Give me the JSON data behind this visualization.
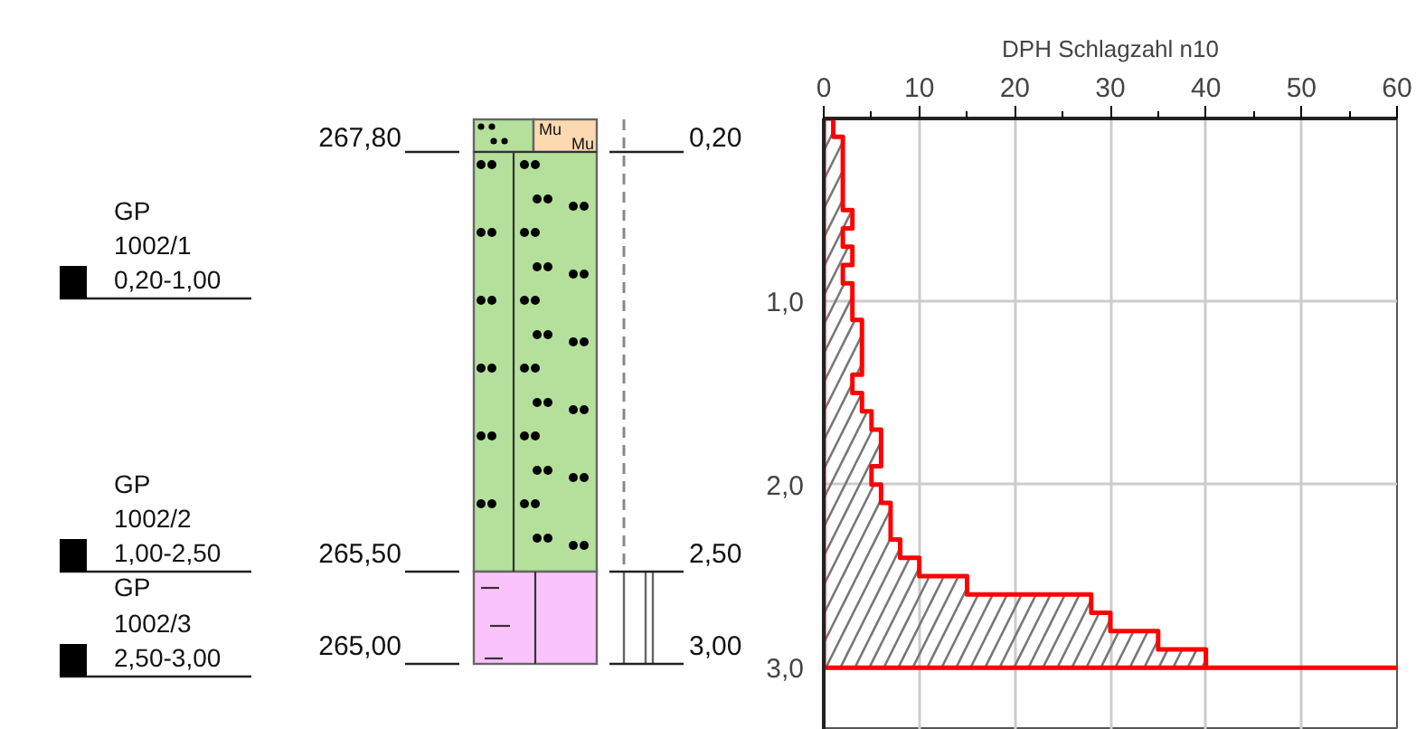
{
  "chart_data": {
    "type": "area",
    "orientation": "horizontal",
    "xlabel": "DPH Schlagzahl n10",
    "x": [
      0,
      0.1,
      0.2,
      0.3,
      0.4,
      0.5,
      0.6,
      0.7,
      0.8,
      0.9,
      1.0,
      1.1,
      1.2,
      1.3,
      1.4,
      1.5,
      1.6,
      1.7,
      1.8,
      1.9,
      2.0,
      2.1,
      2.2,
      2.3,
      2.4,
      2.5,
      2.6,
      2.7,
      2.8,
      2.9,
      3.0
    ],
    "series": [
      {
        "color": "#ff0000",
        "values": [
          1,
          2,
          2,
          2,
          2,
          3,
          2,
          3,
          2,
          3,
          3,
          4,
          4,
          4,
          3,
          4,
          5,
          6,
          6,
          5,
          6,
          7,
          7,
          8,
          10,
          15,
          28,
          30,
          35,
          40,
          60
        ]
      }
    ],
    "xlim": [
      0,
      60
    ],
    "xticks": [
      0,
      10,
      20,
      30,
      40,
      50,
      60,
      {
        "value": 5,
        "label": null
      },
      {
        "value": 15,
        "label": null
      },
      {
        "value": 25,
        "label": null
      },
      {
        "value": 35,
        "label": null
      },
      {
        "value": 45,
        "label": null
      },
      {
        "value": 55,
        "label": null
      }
    ],
    "ylim": [
      3.34,
      0
    ],
    "yticks": [
      {
        "value": 1,
        "label": "1,0"
      },
      {
        "value": 2,
        "label": "2,0"
      },
      {
        "value": 3,
        "label": "3,0"
      }
    ],
    "grid": true,
    "annotations": [
      "267,80",
      "0,20",
      "265,50",
      "2,50",
      "265,00",
      "3,00",
      "GP",
      "1002/1",
      "0,20-1,00",
      "GP",
      "1002/2",
      "1,00-2,50",
      "GP",
      "1002/3",
      "2,50-3,00",
      "Mu",
      "Mu"
    ]
  }
}
